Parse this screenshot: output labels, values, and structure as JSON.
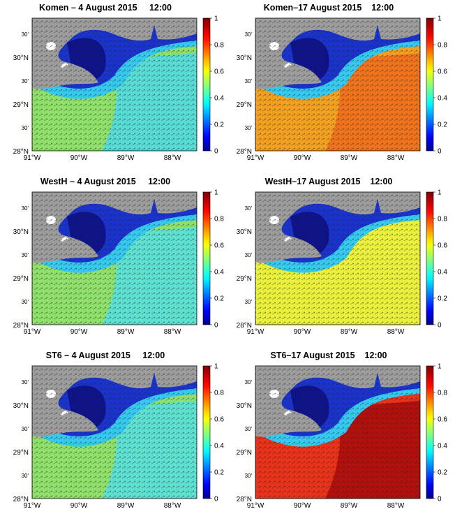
{
  "colors": {
    "land": "#9c9c9c",
    "panel_a": "#8ee06a",
    "panel_b": "#f2a020",
    "panel_c": "#55dfe0",
    "panel_d": "#e9f03c",
    "panel_e": "#e8321a",
    "deep_blue": "#1a33cc",
    "navy": "#0b0b7a",
    "cyan": "#35c9ef"
  },
  "axes": {
    "lat_labels": [
      "28°N",
      "29°N",
      "30°N"
    ],
    "lat_minor": [
      "30'",
      "30'",
      "30'"
    ],
    "lon_labels": [
      "91°W",
      "90°W",
      "89°W",
      "88°W"
    ]
  },
  "colorbar": {
    "ticks": [
      "0",
      "0.2",
      "0.4",
      "0.6",
      "0.8",
      "1"
    ],
    "range": [
      0,
      1
    ],
    "colormap": "jet"
  },
  "panels": [
    {
      "id": "komen-aug4",
      "title": "Komen – 4 August 2015     12:00",
      "field_color": "#8ee06a",
      "offshore_color": "#4fd8e8"
    },
    {
      "id": "komen-aug17",
      "title": "Komen–17 August 2015    12:00",
      "field_color": "#f2a020",
      "offshore_color": "#ee6a1c"
    },
    {
      "id": "westh-aug4",
      "title": "WestH – 4 August 2015     12:00",
      "field_color": "#8ee06a",
      "offshore_color": "#55dfe0"
    },
    {
      "id": "westh-aug17",
      "title": "WestH–17 August 2015    12:00",
      "field_color": "#e9f03c",
      "offshore_color": "#e9f03c"
    },
    {
      "id": "st6-aug4",
      "title": "ST6 – 4 August 2015     12:00",
      "field_color": "#8ee06a",
      "offshore_color": "#55dfe0"
    },
    {
      "id": "st6-aug17",
      "title": "ST6–17 August 2015    12:00",
      "field_color": "#e8321a",
      "offshore_color": "#a80a0a"
    }
  ]
}
